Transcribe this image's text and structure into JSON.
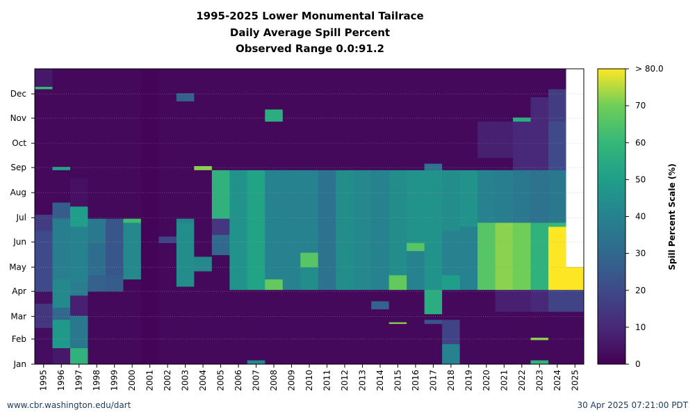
{
  "title_lines": [
    "1995-2025 Lower Monumental Tailrace",
    "Daily Average Spill Percent",
    "Observed Range 0.0:91.2"
  ],
  "footer": {
    "left": "www.cbr.washington.edu/dart",
    "right": "30 Apr 2025 07:21:00 PDT"
  },
  "chart_data": {
    "type": "heatmap",
    "title": "1995-2025 Lower Monumental Tailrace Daily Average Spill Percent Observed Range 0.0:91.2",
    "x_categories": [
      "1995",
      "1996",
      "1997",
      "1998",
      "1999",
      "2000",
      "2001",
      "2002",
      "2003",
      "2004",
      "2005",
      "2006",
      "2007",
      "2008",
      "2009",
      "2010",
      "2011",
      "2012",
      "2013",
      "2014",
      "2015",
      "2016",
      "2017",
      "2018",
      "2019",
      "2020",
      "2021",
      "2022",
      "2023",
      "2024",
      "2025"
    ],
    "y_tick_labels": [
      "Jan",
      "Feb",
      "Mar",
      "Apr",
      "May",
      "Jun",
      "Jul",
      "Aug",
      "Sep",
      "Oct",
      "Nov",
      "Dec"
    ],
    "y_unit": "day of year",
    "color_scale": {
      "label": "Spill Percent Scale (%)",
      "min": 0,
      "max": 80,
      "ticks": [
        "0",
        "10",
        "20",
        "30",
        "40",
        "50",
        "60",
        "70",
        "> 80.0"
      ],
      "colormap": "viridis"
    },
    "observed_range": [
      0.0,
      91.2
    ],
    "no_data": [
      {
        "year": "2025",
        "from_doy": 120,
        "to_doy": 365
      }
    ],
    "series": [
      {
        "year": "1995",
        "segments": [
          [
            0,
            45,
            3
          ],
          [
            45,
            75,
            14
          ],
          [
            75,
            90,
            4
          ],
          [
            90,
            165,
            20
          ],
          [
            165,
            185,
            16
          ],
          [
            185,
            340,
            2
          ],
          [
            340,
            343,
            60
          ],
          [
            343,
            365,
            6
          ]
        ]
      },
      {
        "year": "1996",
        "segments": [
          [
            0,
            20,
            6
          ],
          [
            20,
            55,
            48
          ],
          [
            55,
            70,
            30
          ],
          [
            70,
            105,
            42
          ],
          [
            105,
            180,
            38
          ],
          [
            180,
            200,
            26
          ],
          [
            200,
            240,
            2
          ],
          [
            240,
            244,
            52
          ],
          [
            244,
            365,
            2
          ]
        ]
      },
      {
        "year": "1997",
        "segments": [
          [
            0,
            20,
            58
          ],
          [
            20,
            60,
            36
          ],
          [
            60,
            85,
            8
          ],
          [
            85,
            100,
            38
          ],
          [
            100,
            170,
            40
          ],
          [
            170,
            195,
            50
          ],
          [
            195,
            230,
            4
          ],
          [
            230,
            365,
            2
          ]
        ]
      },
      {
        "year": "1998",
        "segments": [
          [
            0,
            90,
            2
          ],
          [
            90,
            110,
            28
          ],
          [
            110,
            150,
            32
          ],
          [
            150,
            180,
            36
          ],
          [
            180,
            365,
            2
          ]
        ]
      },
      {
        "year": "1999",
        "segments": [
          [
            0,
            90,
            2
          ],
          [
            90,
            110,
            26
          ],
          [
            110,
            180,
            24
          ],
          [
            180,
            365,
            2
          ]
        ]
      },
      {
        "year": "2000",
        "segments": [
          [
            0,
            105,
            2
          ],
          [
            105,
            175,
            42
          ],
          [
            175,
            180,
            62
          ],
          [
            180,
            365,
            2
          ]
        ]
      },
      {
        "year": "2001",
        "segments": [
          [
            0,
            365,
            1
          ]
        ]
      },
      {
        "year": "2002",
        "segments": [
          [
            0,
            150,
            2
          ],
          [
            150,
            158,
            18
          ],
          [
            158,
            365,
            2
          ]
        ]
      },
      {
        "year": "2003",
        "segments": [
          [
            0,
            96,
            2
          ],
          [
            96,
            175,
            44
          ],
          [
            175,
            180,
            40
          ],
          [
            180,
            325,
            2
          ],
          [
            325,
            335,
            28
          ],
          [
            335,
            365,
            2
          ]
        ]
      },
      {
        "year": "2004",
        "segments": [
          [
            0,
            115,
            2
          ],
          [
            115,
            133,
            42
          ],
          [
            133,
            240,
            2
          ],
          [
            240,
            245,
            72
          ],
          [
            245,
            365,
            2
          ]
        ]
      },
      {
        "year": "2005",
        "segments": [
          [
            0,
            135,
            2
          ],
          [
            135,
            160,
            30
          ],
          [
            160,
            180,
            14
          ],
          [
            180,
            240,
            58
          ],
          [
            240,
            365,
            2
          ]
        ]
      },
      {
        "year": "2006",
        "segments": [
          [
            0,
            92,
            2
          ],
          [
            92,
            240,
            46
          ],
          [
            240,
            365,
            2
          ]
        ]
      },
      {
        "year": "2007",
        "segments": [
          [
            0,
            5,
            42
          ],
          [
            5,
            92,
            2
          ],
          [
            92,
            240,
            52
          ],
          [
            240,
            365,
            2
          ]
        ]
      },
      {
        "year": "2008",
        "segments": [
          [
            0,
            92,
            2
          ],
          [
            92,
            105,
            68
          ],
          [
            105,
            240,
            40
          ],
          [
            240,
            300,
            2
          ],
          [
            300,
            315,
            56
          ],
          [
            315,
            365,
            2
          ]
        ]
      },
      {
        "year": "2009",
        "segments": [
          [
            0,
            92,
            2
          ],
          [
            92,
            240,
            40
          ],
          [
            240,
            365,
            2
          ]
        ]
      },
      {
        "year": "2010",
        "segments": [
          [
            0,
            92,
            2
          ],
          [
            92,
            120,
            44
          ],
          [
            120,
            138,
            66
          ],
          [
            138,
            240,
            40
          ],
          [
            240,
            365,
            2
          ]
        ]
      },
      {
        "year": "2011",
        "segments": [
          [
            0,
            92,
            2
          ],
          [
            92,
            240,
            34
          ],
          [
            240,
            365,
            2
          ]
        ]
      },
      {
        "year": "2012",
        "segments": [
          [
            0,
            92,
            2
          ],
          [
            92,
            240,
            44
          ],
          [
            240,
            365,
            2
          ]
        ]
      },
      {
        "year": "2013",
        "segments": [
          [
            0,
            92,
            2
          ],
          [
            92,
            240,
            42
          ],
          [
            240,
            365,
            2
          ]
        ]
      },
      {
        "year": "2014",
        "segments": [
          [
            0,
            68,
            2
          ],
          [
            68,
            78,
            28
          ],
          [
            78,
            92,
            2
          ],
          [
            92,
            240,
            40
          ],
          [
            240,
            365,
            2
          ]
        ]
      },
      {
        "year": "2015",
        "segments": [
          [
            0,
            50,
            2
          ],
          [
            50,
            52,
            72
          ],
          [
            52,
            92,
            2
          ],
          [
            92,
            110,
            68
          ],
          [
            110,
            240,
            44
          ],
          [
            240,
            365,
            2
          ]
        ]
      },
      {
        "year": "2016",
        "segments": [
          [
            0,
            92,
            2
          ],
          [
            92,
            140,
            40
          ],
          [
            140,
            150,
            66
          ],
          [
            150,
            240,
            46
          ],
          [
            240,
            365,
            2
          ]
        ]
      },
      {
        "year": "2017",
        "segments": [
          [
            0,
            50,
            2
          ],
          [
            50,
            55,
            24
          ],
          [
            55,
            62,
            2
          ],
          [
            62,
            92,
            56
          ],
          [
            92,
            240,
            46
          ],
          [
            240,
            248,
            34
          ],
          [
            248,
            365,
            2
          ]
        ]
      },
      {
        "year": "2018",
        "segments": [
          [
            0,
            25,
            40
          ],
          [
            25,
            55,
            18
          ],
          [
            55,
            92,
            2
          ],
          [
            92,
            110,
            50
          ],
          [
            110,
            165,
            40
          ],
          [
            165,
            240,
            44
          ],
          [
            240,
            365,
            2
          ]
        ]
      },
      {
        "year": "2019",
        "segments": [
          [
            0,
            92,
            2
          ],
          [
            92,
            170,
            40
          ],
          [
            170,
            240,
            46
          ],
          [
            240,
            365,
            2
          ]
        ]
      },
      {
        "year": "2020",
        "segments": [
          [
            0,
            92,
            2
          ],
          [
            92,
            175,
            66
          ],
          [
            175,
            240,
            40
          ],
          [
            240,
            255,
            2
          ],
          [
            255,
            300,
            8
          ],
          [
            300,
            365,
            2
          ]
        ]
      },
      {
        "year": "2021",
        "segments": [
          [
            0,
            65,
            2
          ],
          [
            65,
            92,
            8
          ],
          [
            92,
            175,
            72
          ],
          [
            175,
            240,
            38
          ],
          [
            240,
            255,
            2
          ],
          [
            255,
            300,
            8
          ],
          [
            300,
            365,
            2
          ]
        ]
      },
      {
        "year": "2022",
        "segments": [
          [
            0,
            65,
            2
          ],
          [
            65,
            92,
            8
          ],
          [
            92,
            175,
            70
          ],
          [
            175,
            240,
            36
          ],
          [
            240,
            300,
            10
          ],
          [
            300,
            305,
            56
          ],
          [
            305,
            365,
            2
          ]
        ]
      },
      {
        "year": "2023",
        "segments": [
          [
            0,
            5,
            58
          ],
          [
            5,
            30,
            2
          ],
          [
            30,
            33,
            72
          ],
          [
            33,
            65,
            2
          ],
          [
            65,
            92,
            10
          ],
          [
            92,
            175,
            58
          ],
          [
            175,
            240,
            34
          ],
          [
            240,
            330,
            10
          ],
          [
            330,
            365,
            2
          ]
        ]
      },
      {
        "year": "2024",
        "segments": [
          [
            0,
            65,
            2
          ],
          [
            65,
            92,
            18
          ],
          [
            92,
            170,
            84
          ],
          [
            170,
            175,
            60
          ],
          [
            175,
            240,
            36
          ],
          [
            240,
            300,
            20
          ],
          [
            300,
            340,
            16
          ],
          [
            340,
            365,
            2
          ]
        ]
      },
      {
        "year": "2025",
        "segments": [
          [
            0,
            65,
            2
          ],
          [
            65,
            92,
            18
          ],
          [
            92,
            120,
            86
          ]
        ]
      }
    ]
  }
}
